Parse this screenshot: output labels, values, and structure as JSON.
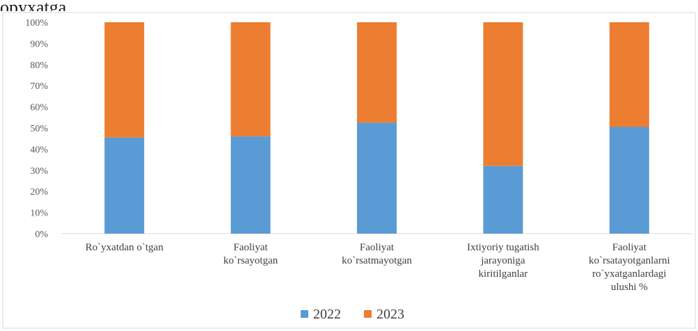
{
  "page_top_text": "opyxatga",
  "chart_data": {
    "type": "bar",
    "stacked": true,
    "percent_stacked": true,
    "categories": [
      "Ro`yxatdan o`tgan",
      "Faoliyat ko`rsayotgan",
      "Faoliyat ko`rsatmayotgan",
      "Ixtiyoriy tugatish jarayoniga kiritilganlar",
      "Faoliyat ko`rsatayotganlarni ro`yxatganlardagi ulushi %"
    ],
    "category_lines": [
      [
        "Ro`yxatdan o`tgan"
      ],
      [
        "Faoliyat",
        "ko`rsayotgan"
      ],
      [
        "Faoliyat",
        "ko`rsatmayotgan"
      ],
      [
        "Ixtiyoriy tugatish",
        "jarayoniga",
        "kiritilganlar"
      ],
      [
        "Faoliyat",
        "ko`rsatayotganlarni",
        "ro`yxatganlardagi",
        "ulushi %"
      ]
    ],
    "series": [
      {
        "name": "2022",
        "color": "#5b9bd5",
        "values": [
          45.5,
          46,
          52.5,
          32,
          50.5
        ]
      },
      {
        "name": "2023",
        "color": "#ed7d31",
        "values": [
          54.5,
          54,
          47.5,
          68,
          49.5
        ]
      }
    ],
    "ylim": [
      0,
      100
    ],
    "yticks": [
      0,
      10,
      20,
      30,
      40,
      50,
      60,
      70,
      80,
      90,
      100
    ],
    "ytick_labels": [
      "0%",
      "10%",
      "20%",
      "30%",
      "40%",
      "50%",
      "60%",
      "70%",
      "80%",
      "90%",
      "100%"
    ],
    "grid": false,
    "legend_position": "bottom",
    "title": "",
    "xlabel": "",
    "ylabel": ""
  }
}
